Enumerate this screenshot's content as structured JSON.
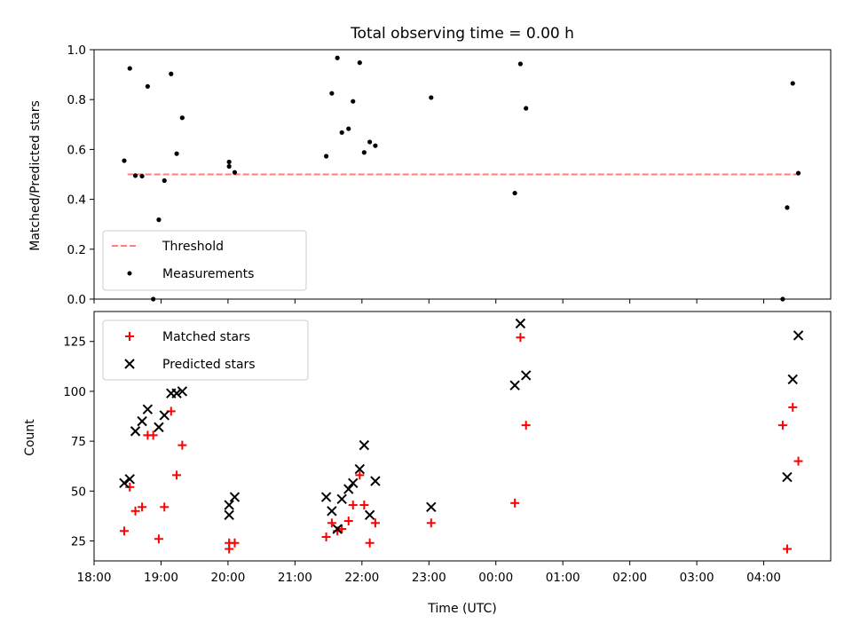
{
  "chart_data": [
    {
      "type": "scatter",
      "title": "Total observing time = 0.00 h",
      "xlabel": "",
      "ylabel": "Matched/Predicted stars",
      "xlim": [
        "18:00",
        "05:00"
      ],
      "ylim": [
        0,
        1.0
      ],
      "yticks": [
        "0.0",
        "0.2",
        "0.4",
        "0.6",
        "0.8",
        "1.0"
      ],
      "legend_position": "lower-left",
      "threshold": {
        "name": "Threshold",
        "value": 0.5,
        "x_range": [
          "18:30",
          "04:31"
        ],
        "color": "#ff7f7f",
        "style": "dashed"
      },
      "series": [
        {
          "name": "Measurements",
          "color": "#000000",
          "marker": "dot",
          "points": [
            {
              "x": "18:27",
              "y": 0.555
            },
            {
              "x": "18:32",
              "y": 0.925
            },
            {
              "x": "18:37",
              "y": 0.495
            },
            {
              "x": "18:43",
              "y": 0.493
            },
            {
              "x": "18:48",
              "y": 0.853
            },
            {
              "x": "18:53",
              "y": 0.0
            },
            {
              "x": "18:58",
              "y": 0.318
            },
            {
              "x": "19:03",
              "y": 0.475
            },
            {
              "x": "19:09",
              "y": 0.903
            },
            {
              "x": "19:14",
              "y": 0.583
            },
            {
              "x": "19:19",
              "y": 0.727
            },
            {
              "x": "20:01",
              "y": 0.55
            },
            {
              "x": "20:01",
              "y": 0.532
            },
            {
              "x": "20:06",
              "y": 0.508
            },
            {
              "x": "21:28",
              "y": 0.573
            },
            {
              "x": "21:33",
              "y": 0.825
            },
            {
              "x": "21:38",
              "y": 0.967
            },
            {
              "x": "21:42",
              "y": 0.668
            },
            {
              "x": "21:48",
              "y": 0.683
            },
            {
              "x": "21:52",
              "y": 0.793
            },
            {
              "x": "21:58",
              "y": 0.948
            },
            {
              "x": "22:02",
              "y": 0.588
            },
            {
              "x": "22:07",
              "y": 0.63
            },
            {
              "x": "22:12",
              "y": 0.615
            },
            {
              "x": "23:02",
              "y": 0.808
            },
            {
              "x": "00:17",
              "y": 0.425
            },
            {
              "x": "00:22",
              "y": 0.943
            },
            {
              "x": "00:27",
              "y": 0.765
            },
            {
              "x": "04:17",
              "y": 0.0
            },
            {
              "x": "04:21",
              "y": 0.367
            },
            {
              "x": "04:26",
              "y": 0.865
            },
            {
              "x": "04:31",
              "y": 0.505
            }
          ]
        }
      ]
    },
    {
      "type": "scatter",
      "title": "",
      "xlabel": "Time (UTC)",
      "ylabel": "Count",
      "xlim": [
        "18:00",
        "05:00"
      ],
      "ylim": [
        15,
        140
      ],
      "xticks": [
        "18:00",
        "19:00",
        "20:00",
        "21:00",
        "22:00",
        "23:00",
        "00:00",
        "01:00",
        "02:00",
        "03:00",
        "04:00"
      ],
      "yticks": [
        "25",
        "50",
        "75",
        "100",
        "125"
      ],
      "legend_position": "upper-left",
      "series": [
        {
          "name": "Matched stars",
          "color": "#ff0000",
          "marker": "plus",
          "points": [
            {
              "x": "18:27",
              "y": 30
            },
            {
              "x": "18:32",
              "y": 52
            },
            {
              "x": "18:37",
              "y": 40
            },
            {
              "x": "18:43",
              "y": 42
            },
            {
              "x": "18:48",
              "y": 78
            },
            {
              "x": "18:53",
              "y": 78
            },
            {
              "x": "18:58",
              "y": 26
            },
            {
              "x": "19:03",
              "y": 42
            },
            {
              "x": "19:09",
              "y": 90
            },
            {
              "x": "19:14",
              "y": 58
            },
            {
              "x": "19:19",
              "y": 73
            },
            {
              "x": "20:01",
              "y": 24
            },
            {
              "x": "20:01",
              "y": 21
            },
            {
              "x": "20:06",
              "y": 24
            },
            {
              "x": "21:28",
              "y": 27
            },
            {
              "x": "21:33",
              "y": 34
            },
            {
              "x": "21:38",
              "y": 30
            },
            {
              "x": "21:42",
              "y": 31
            },
            {
              "x": "21:48",
              "y": 35
            },
            {
              "x": "21:52",
              "y": 43
            },
            {
              "x": "21:58",
              "y": 58
            },
            {
              "x": "22:02",
              "y": 43
            },
            {
              "x": "22:07",
              "y": 24
            },
            {
              "x": "22:12",
              "y": 34
            },
            {
              "x": "23:02",
              "y": 34
            },
            {
              "x": "00:17",
              "y": 44
            },
            {
              "x": "00:22",
              "y": 127
            },
            {
              "x": "00:27",
              "y": 83
            },
            {
              "x": "04:17",
              "y": 83
            },
            {
              "x": "04:21",
              "y": 21
            },
            {
              "x": "04:26",
              "y": 92
            },
            {
              "x": "04:31",
              "y": 65
            }
          ]
        },
        {
          "name": "Predicted stars",
          "color": "#000000",
          "marker": "x",
          "points": [
            {
              "x": "18:27",
              "y": 54
            },
            {
              "x": "18:32",
              "y": 56
            },
            {
              "x": "18:37",
              "y": 80
            },
            {
              "x": "18:43",
              "y": 85
            },
            {
              "x": "18:48",
              "y": 91
            },
            {
              "x": "18:58",
              "y": 82
            },
            {
              "x": "19:03",
              "y": 88
            },
            {
              "x": "19:09",
              "y": 99
            },
            {
              "x": "19:14",
              "y": 99
            },
            {
              "x": "19:19",
              "y": 100
            },
            {
              "x": "20:01",
              "y": 43
            },
            {
              "x": "20:01",
              "y": 38
            },
            {
              "x": "20:06",
              "y": 47
            },
            {
              "x": "21:28",
              "y": 47
            },
            {
              "x": "21:33",
              "y": 40
            },
            {
              "x": "21:38",
              "y": 31
            },
            {
              "x": "21:42",
              "y": 46
            },
            {
              "x": "21:48",
              "y": 51
            },
            {
              "x": "21:52",
              "y": 54
            },
            {
              "x": "21:58",
              "y": 61
            },
            {
              "x": "22:02",
              "y": 73
            },
            {
              "x": "22:07",
              "y": 38
            },
            {
              "x": "22:12",
              "y": 55
            },
            {
              "x": "23:02",
              "y": 42
            },
            {
              "x": "00:17",
              "y": 103
            },
            {
              "x": "00:22",
              "y": 134
            },
            {
              "x": "00:27",
              "y": 108
            },
            {
              "x": "04:21",
              "y": 57
            },
            {
              "x": "04:26",
              "y": 106
            },
            {
              "x": "04:31",
              "y": 128
            }
          ]
        }
      ]
    }
  ]
}
